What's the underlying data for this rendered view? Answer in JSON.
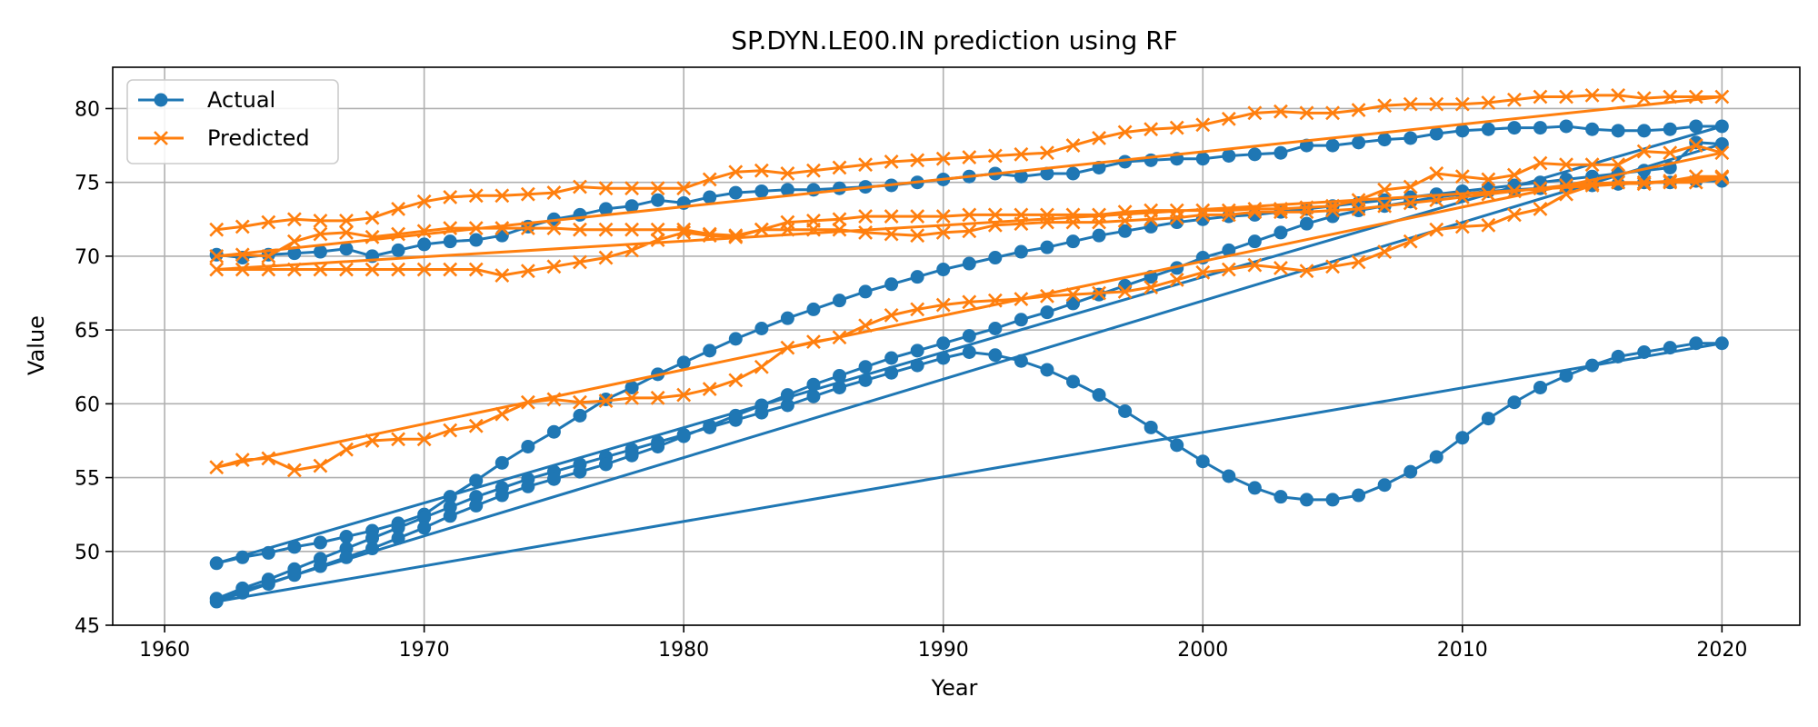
{
  "chart_data": {
    "type": "line",
    "title": "SP.DYN.LE00.IN prediction using RF",
    "xlabel": "Year",
    "ylabel": "Value",
    "xlim": [
      1958,
      2023
    ],
    "ylim": [
      45,
      82.8
    ],
    "xticks": [
      1960,
      1970,
      1980,
      1990,
      2000,
      2010,
      2020
    ],
    "yticks": [
      45,
      50,
      55,
      60,
      65,
      70,
      75,
      80
    ],
    "grid": true,
    "legend_position": "top-left",
    "x": [
      1962,
      1963,
      1964,
      1965,
      1966,
      1967,
      1968,
      1969,
      1970,
      1971,
      1972,
      1973,
      1974,
      1975,
      1976,
      1977,
      1978,
      1979,
      1980,
      1981,
      1982,
      1983,
      1984,
      1985,
      1986,
      1987,
      1988,
      1989,
      1990,
      1991,
      1992,
      1993,
      1994,
      1995,
      1996,
      1997,
      1998,
      1999,
      2000,
      2001,
      2002,
      2003,
      2004,
      2005,
      2006,
      2007,
      2008,
      2009,
      2010,
      2011,
      2012,
      2013,
      2014,
      2015,
      2016,
      2017,
      2018,
      2019,
      2020
    ],
    "series": [
      {
        "name": "Actual",
        "color": "#1f77b4",
        "marker": "circle",
        "segments": [
          [
            70.1,
            69.9,
            70.1,
            70.2,
            70.3,
            70.5,
            70.0,
            70.4,
            70.8,
            71.0,
            71.1,
            71.4,
            72.0,
            72.5,
            72.8,
            73.2,
            73.4,
            73.8,
            73.6,
            74.0,
            74.3,
            74.4,
            74.5,
            74.5,
            74.6,
            74.7,
            74.8,
            75.0,
            75.2,
            75.4,
            75.6,
            75.4,
            75.6,
            75.6,
            76.0,
            76.4,
            76.5,
            76.6,
            76.6,
            76.8,
            76.9,
            77.0,
            77.5,
            77.5,
            77.7,
            77.9,
            78.0,
            78.3,
            78.5,
            78.6,
            78.7,
            78.7,
            78.8,
            78.6,
            78.5,
            78.5,
            78.6,
            78.8,
            78.8
          ],
          [
            49.2,
            49.6,
            49.9,
            50.3,
            50.6,
            51.0,
            51.4,
            51.9,
            52.5,
            53.7,
            54.8,
            56.0,
            57.1,
            58.1,
            59.2,
            60.3,
            61.1,
            62.0,
            62.8,
            63.6,
            64.4,
            65.1,
            65.8,
            66.4,
            67.0,
            67.6,
            68.1,
            68.6,
            69.1,
            69.5,
            69.9,
            70.3,
            70.6,
            71.0,
            71.4,
            71.7,
            72.0,
            72.3,
            72.5,
            72.7,
            72.8,
            73.0,
            73.2,
            73.4,
            73.6,
            73.8,
            74.0,
            74.2,
            74.4,
            74.6,
            74.8,
            75.0,
            75.2,
            75.4,
            75.6,
            75.8,
            76.0,
            77.7,
            77.6
          ],
          [
            46.8,
            47.5,
            48.1,
            48.8,
            49.5,
            50.2,
            50.9,
            51.6,
            52.3,
            53.0,
            53.7,
            54.3,
            54.9,
            55.4,
            55.9,
            56.4,
            56.9,
            57.4,
            57.9,
            58.4,
            58.9,
            59.4,
            59.9,
            60.5,
            61.1,
            61.6,
            62.1,
            62.6,
            63.1,
            63.5,
            63.3,
            62.9,
            62.3,
            61.5,
            60.6,
            59.5,
            58.4,
            57.2,
            56.1,
            55.1,
            54.3,
            53.7,
            53.5,
            53.5,
            53.8,
            54.5,
            55.4,
            56.4,
            57.7,
            59.0,
            60.1,
            61.1,
            61.9,
            62.6,
            63.2,
            63.5,
            63.8,
            64.1,
            64.1
          ],
          [
            46.6,
            47.2,
            47.8,
            48.4,
            49.0,
            49.6,
            50.2,
            50.9,
            51.6,
            52.4,
            53.1,
            53.8,
            54.4,
            54.9,
            55.4,
            55.9,
            56.5,
            57.1,
            57.8,
            58.5,
            59.2,
            59.9,
            60.6,
            61.3,
            61.9,
            62.5,
            63.1,
            63.6,
            64.1,
            64.6,
            65.1,
            65.7,
            66.2,
            66.8,
            67.4,
            68.0,
            68.6,
            69.2,
            69.9,
            70.4,
            71.0,
            71.6,
            72.2,
            72.7,
            73.1,
            73.4,
            73.7,
            74.0,
            74.2,
            74.4,
            74.5,
            74.6,
            74.7,
            74.8,
            74.9,
            75.0,
            75.0,
            75.1,
            75.1
          ]
        ],
        "return_line": [
          [
            2020,
            75.1
          ],
          [
            1962,
            46.6
          ]
        ],
        "return_line_2": [
          [
            2020,
            77.7
          ],
          [
            1962,
            70.1
          ]
        ]
      },
      {
        "name": "Predicted",
        "color": "#ff7f0e",
        "marker": "x",
        "segments": [
          [
            71.8,
            72.0,
            72.3,
            72.5,
            72.4,
            72.4,
            72.6,
            73.2,
            73.7,
            74.0,
            74.1,
            74.1,
            74.2,
            74.3,
            74.7,
            74.6,
            74.6,
            74.6,
            74.6,
            75.2,
            75.7,
            75.8,
            75.6,
            75.8,
            76.0,
            76.2,
            76.4,
            76.5,
            76.6,
            76.7,
            76.8,
            76.9,
            77.0,
            77.5,
            78.0,
            78.4,
            78.6,
            78.7,
            78.9,
            79.3,
            79.7,
            79.8,
            79.7,
            79.7,
            79.9,
            80.2,
            80.3,
            80.3,
            80.3,
            80.4,
            80.6,
            80.8,
            80.8,
            80.9,
            80.9,
            80.7,
            80.8,
            80.8,
            80.8
          ],
          [
            70.0,
            70.1,
            70.0,
            71.0,
            71.5,
            71.6,
            71.3,
            71.5,
            71.7,
            71.9,
            71.9,
            71.9,
            71.9,
            71.9,
            71.8,
            71.8,
            71.8,
            71.8,
            71.8,
            71.5,
            71.4,
            71.8,
            71.8,
            71.8,
            71.8,
            71.6,
            71.5,
            71.4,
            71.6,
            71.7,
            72.1,
            72.2,
            72.3,
            72.3,
            72.3,
            72.4,
            72.5,
            72.6,
            72.8,
            72.8,
            73.0,
            73.0,
            73.0,
            73.1,
            73.2,
            73.4,
            73.6,
            73.8,
            74.0,
            74.2,
            74.4,
            74.6,
            74.8,
            74.9,
            75.0,
            75.0,
            75.0,
            75.0,
            75.3
          ],
          [
            69.1,
            69.1,
            69.1,
            69.1,
            69.1,
            69.1,
            69.1,
            69.1,
            69.1,
            69.1,
            69.1,
            68.7,
            69.0,
            69.3,
            69.6,
            69.9,
            70.4,
            71.1,
            71.6,
            71.4,
            71.3,
            71.8,
            72.3,
            72.4,
            72.5,
            72.7,
            72.7,
            72.7,
            72.7,
            72.8,
            72.8,
            72.8,
            72.8,
            72.8,
            72.8,
            73.0,
            73.1,
            73.1,
            73.1,
            73.1,
            73.2,
            73.2,
            73.3,
            73.4,
            73.8,
            74.5,
            74.7,
            75.6,
            75.4,
            75.2,
            75.5,
            76.3,
            76.2,
            76.2,
            76.2,
            77.1,
            77.0,
            77.5,
            77.0
          ],
          [
            55.7,
            56.2,
            56.3,
            55.5,
            55.8,
            56.9,
            57.5,
            57.6,
            57.6,
            58.2,
            58.5,
            59.3,
            60.1,
            60.3,
            60.1,
            60.2,
            60.4,
            60.4,
            60.6,
            61.0,
            61.6,
            62.5,
            63.8,
            64.2,
            64.5,
            65.3,
            66.0,
            66.4,
            66.7,
            66.9,
            67.0,
            67.1,
            67.3,
            67.4,
            67.5,
            67.6,
            67.9,
            68.4,
            68.9,
            69.1,
            69.4,
            69.2,
            69.0,
            69.3,
            69.6,
            70.3,
            71.0,
            71.8,
            72.0,
            72.1,
            72.8,
            73.2,
            74.2,
            74.8,
            75.0,
            74.9,
            75.1,
            75.4,
            75.4
          ]
        ]
      }
    ]
  }
}
